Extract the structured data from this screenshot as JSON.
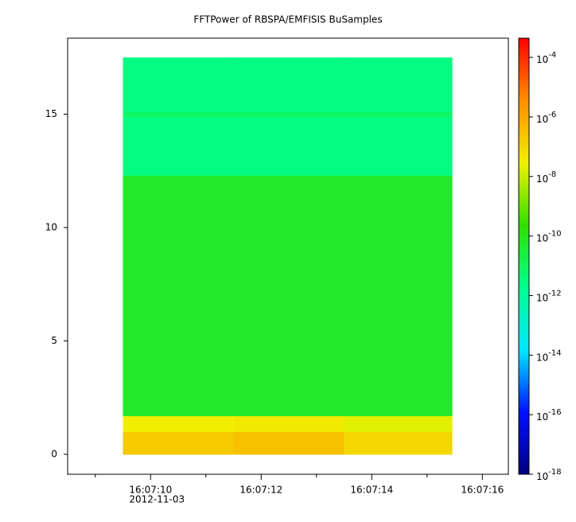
{
  "chart_data": {
    "type": "heatmap",
    "title": "FFTPower of RBSPA/EMFISIS  BuSamples",
    "x_bins": [
      9.5,
      11.5,
      13.5,
      15.45
    ],
    "y_bins": [
      0,
      1,
      1.7,
      12.3,
      14.9,
      15.1,
      17.5
    ],
    "z": [
      [
        2e-07,
        3e-07,
        1e-07
      ],
      [
        3e-08,
        4e-08,
        2e-08
      ],
      [
        6e-11,
        6e-11,
        6e-11
      ],
      [
        3e-12,
        3e-12,
        3e-12
      ],
      [
        8e-12,
        8e-12,
        8e-12
      ],
      [
        3e-12,
        3e-12,
        3e-12
      ]
    ],
    "xlim": [
      8.5,
      16.47
    ],
    "xticks": [
      {
        "value": 10,
        "label": "16:07:10"
      },
      {
        "value": 12,
        "label": "16:07:12"
      },
      {
        "value": 14,
        "label": "16:07:14"
      },
      {
        "value": 16,
        "label": "16:07:16"
      }
    ],
    "x_minor_ticks": [
      9,
      11,
      13,
      15
    ],
    "x_date_label": "2012-11-03",
    "ylim": [
      -0.88,
      18.35
    ],
    "yticks": [
      0,
      5,
      10,
      15
    ],
    "zlim": [
      1e-18,
      0.00044
    ],
    "z_log": true,
    "zticks": [
      {
        "value": 0.0001,
        "label": "10",
        "exponent": "-4"
      },
      {
        "value": 1e-06,
        "label": "10",
        "exponent": "-6"
      },
      {
        "value": 1e-08,
        "label": "10",
        "exponent": "-8"
      },
      {
        "value": 1e-10,
        "label": "10",
        "exponent": "-10"
      },
      {
        "value": 1e-12,
        "label": "10",
        "exponent": "-12"
      },
      {
        "value": 1e-14,
        "label": "10",
        "exponent": "-14"
      },
      {
        "value": 1e-16,
        "label": "10",
        "exponent": "-16"
      },
      {
        "value": 1e-18,
        "label": "10",
        "exponent": "-18"
      }
    ],
    "colormap": [
      "#00007f",
      "#0010ff",
      "#00e8ff",
      "#00ff90",
      "#30e000",
      "#f0f000",
      "#ff9000",
      "#ff0000"
    ]
  }
}
